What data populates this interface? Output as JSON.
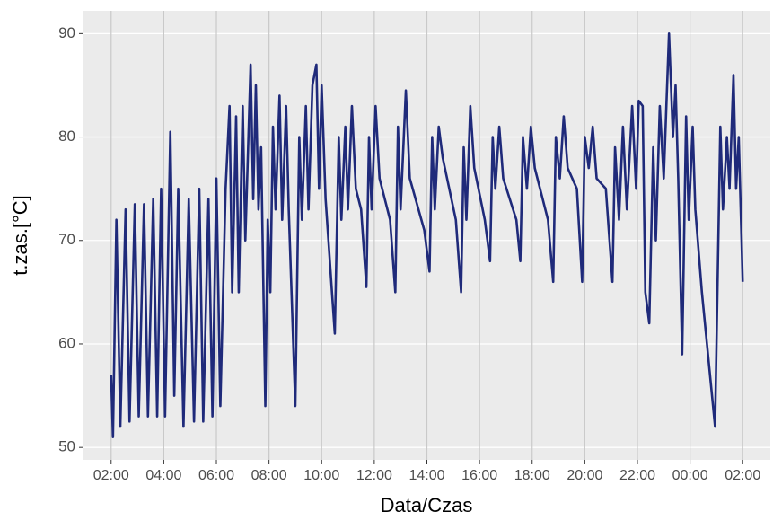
{
  "chart_data": {
    "type": "line",
    "x_label": "Data/Czas",
    "y_label": "t.zas.[°C]",
    "x": [
      2.0,
      2.07,
      2.2,
      2.35,
      2.55,
      2.7,
      2.9,
      3.05,
      3.25,
      3.4,
      3.6,
      3.75,
      3.9,
      4.05,
      4.25,
      4.4,
      4.55,
      4.75,
      4.95,
      5.15,
      5.35,
      5.5,
      5.7,
      5.85,
      6.0,
      6.15,
      6.35,
      6.5,
      6.6,
      6.75,
      6.85,
      7.0,
      7.1,
      7.3,
      7.4,
      7.5,
      7.6,
      7.7,
      7.86,
      7.95,
      8.05,
      8.15,
      8.25,
      8.4,
      8.5,
      8.65,
      8.75,
      9.0,
      9.15,
      9.25,
      9.4,
      9.5,
      9.65,
      9.8,
      9.9,
      10.0,
      10.15,
      10.5,
      10.65,
      10.75,
      10.9,
      11.0,
      11.15,
      11.3,
      11.5,
      11.7,
      11.8,
      11.9,
      12.05,
      12.2,
      12.6,
      12.8,
      12.9,
      13.0,
      13.2,
      13.35,
      13.9,
      14.1,
      14.2,
      14.3,
      14.45,
      14.6,
      15.1,
      15.3,
      15.4,
      15.5,
      15.65,
      15.8,
      16.2,
      16.4,
      16.5,
      16.6,
      16.75,
      16.9,
      17.4,
      17.55,
      17.65,
      17.8,
      17.95,
      18.1,
      18.6,
      18.8,
      18.9,
      19.05,
      19.2,
      19.35,
      19.7,
      19.9,
      20.0,
      20.15,
      20.3,
      20.45,
      20.8,
      21.05,
      21.15,
      21.3,
      21.45,
      21.6,
      21.8,
      21.95,
      22.05,
      22.2,
      22.3,
      22.45,
      22.6,
      22.7,
      22.85,
      23.0,
      23.2,
      23.35,
      23.45,
      23.55,
      23.7,
      23.85,
      23.95,
      24.1,
      24.2,
      24.45,
      24.95,
      25.15,
      25.25,
      25.4,
      25.5,
      25.65,
      25.75,
      25.85,
      26.0
    ],
    "values": [
      57,
      51,
      72,
      52,
      73,
      52.5,
      73.5,
      53,
      73.5,
      53,
      74,
      53,
      75,
      53,
      80.5,
      55,
      75,
      52,
      74,
      52.5,
      75,
      52.5,
      74,
      53,
      76,
      54,
      75,
      83,
      65,
      82,
      65,
      83,
      70,
      87,
      74,
      85,
      73,
      79,
      54,
      72,
      65,
      81,
      73,
      84,
      72,
      83,
      73,
      54,
      80,
      72,
      83,
      73,
      85,
      87,
      75,
      85,
      74,
      61,
      80,
      72,
      81,
      73,
      83,
      75,
      73,
      65.5,
      80,
      73,
      83,
      76,
      72,
      65,
      81,
      73,
      84.5,
      76,
      71,
      67,
      80,
      73,
      81,
      78,
      72,
      65,
      79,
      72,
      83,
      77,
      72,
      68,
      80,
      75,
      81,
      76,
      72,
      68,
      80,
      75,
      81,
      77,
      72,
      66,
      80,
      76,
      82,
      77,
      75,
      66,
      80,
      77,
      81,
      76,
      75,
      66,
      79,
      72,
      81,
      73,
      83,
      75,
      83.5,
      83,
      65,
      62,
      79,
      70,
      83,
      76,
      90,
      80,
      85,
      76,
      59,
      82,
      72,
      81,
      73,
      65,
      52,
      81,
      73,
      80,
      75,
      86,
      75,
      80,
      66
    ],
    "color": "#1f2a7a",
    "xlim": [
      0.95,
      27.05
    ],
    "xticks": [
      {
        "value": 2,
        "label": "02:00"
      },
      {
        "value": 4,
        "label": "04:00"
      },
      {
        "value": 6,
        "label": "06:00"
      },
      {
        "value": 8,
        "label": "08:00"
      },
      {
        "value": 10,
        "label": "10:00"
      },
      {
        "value": 12,
        "label": "12:00"
      },
      {
        "value": 14,
        "label": "14:00"
      },
      {
        "value": 16,
        "label": "16:00"
      },
      {
        "value": 18,
        "label": "18:00"
      },
      {
        "value": 20,
        "label": "20:00"
      },
      {
        "value": 22,
        "label": "22:00"
      },
      {
        "value": 24,
        "label": "00:00"
      },
      {
        "value": 26,
        "label": "02:00"
      }
    ],
    "ylim": [
      48.8,
      92.2
    ],
    "yticks": [
      50,
      60,
      70,
      80,
      90
    ],
    "grid": true
  }
}
